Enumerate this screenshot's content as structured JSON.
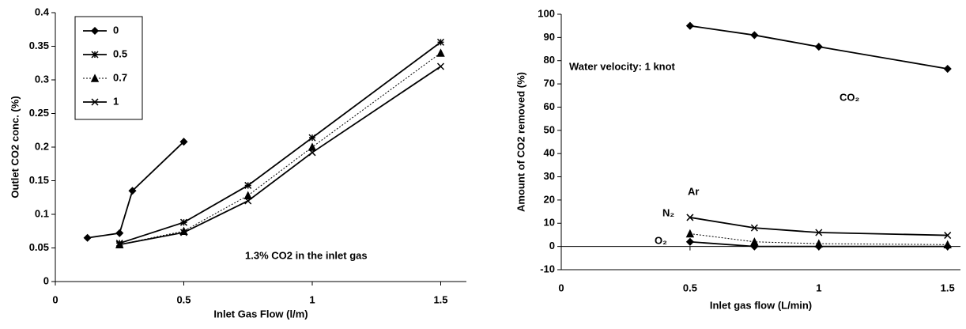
{
  "chart_data": [
    {
      "type": "line",
      "x_label": "Inlet Gas Flow (l/m)",
      "y_label": "Outlet CO2 conc. (%)",
      "annotation": "1.3% CO2 in the inlet gas",
      "xlim": [
        0,
        1.6
      ],
      "xticks": [
        0,
        0.5,
        1,
        1.5
      ],
      "ylim": [
        0,
        0.4
      ],
      "yticks": [
        0,
        0.05,
        0.1,
        0.15,
        0.2,
        0.25,
        0.3,
        0.35,
        0.4
      ],
      "legend": "top-left",
      "series": [
        {
          "name": "0",
          "color": "#000000",
          "marker": "diamond",
          "dash": false,
          "x": [
            0.125,
            0.25,
            0.3,
            0.5
          ],
          "values": [
            0.065,
            0.072,
            0.135,
            0.208
          ]
        },
        {
          "name": "0.5",
          "color": "#000000",
          "marker": "asterisk",
          "dash": false,
          "x": [
            0.25,
            0.5,
            0.75,
            1,
            1.5
          ],
          "values": [
            0.057,
            0.088,
            0.143,
            0.214,
            0.356
          ]
        },
        {
          "name": "0.7",
          "color": "#000000",
          "marker": "triangle",
          "dash": true,
          "x": [
            0.25,
            0.5,
            0.75,
            1,
            1.5
          ],
          "values": [
            0.055,
            0.075,
            0.128,
            0.2,
            0.34
          ]
        },
        {
          "name": "1",
          "color": "#000000",
          "marker": "cross",
          "dash": false,
          "x": [
            0.25,
            0.5,
            0.75,
            1,
            1.5
          ],
          "values": [
            0.055,
            0.073,
            0.12,
            0.192,
            0.32
          ]
        }
      ]
    },
    {
      "type": "line",
      "x_label": "Inlet gas flow (L/min)",
      "y_label": "Amount of CO2 removed (%)",
      "annotation": "Water velocity: 1 knot",
      "xlim": [
        0,
        1.55
      ],
      "xticks": [
        0,
        0.5,
        1,
        1.5
      ],
      "ylim": [
        -10,
        100
      ],
      "yticks": [
        -10,
        0,
        10,
        20,
        30,
        40,
        50,
        60,
        70,
        80,
        90,
        100
      ],
      "series": [
        {
          "name": "CO₂",
          "color": "#000000",
          "marker": "diamond",
          "dash": false,
          "x": [
            0.5,
            0.75,
            1,
            1.5
          ],
          "values": [
            95,
            91,
            86,
            76.5
          ]
        },
        {
          "name": "Ar",
          "color": "#000000",
          "marker": "cross",
          "dash": false,
          "x": [
            0.5,
            0.75,
            1,
            1.5
          ],
          "values": [
            12.5,
            8,
            6,
            4.8
          ]
        },
        {
          "name": "N₂",
          "color": "#000000",
          "marker": "triangle",
          "dash": true,
          "x": [
            0.5,
            0.75,
            1,
            1.5
          ],
          "values": [
            5.5,
            2,
            1.2,
            0.8
          ]
        },
        {
          "name": "O₂",
          "color": "#000000",
          "marker": "diamond",
          "dash": false,
          "x": [
            0.5,
            0.75,
            1,
            1.5
          ],
          "values": [
            2,
            0,
            0,
            0
          ]
        }
      ]
    }
  ]
}
